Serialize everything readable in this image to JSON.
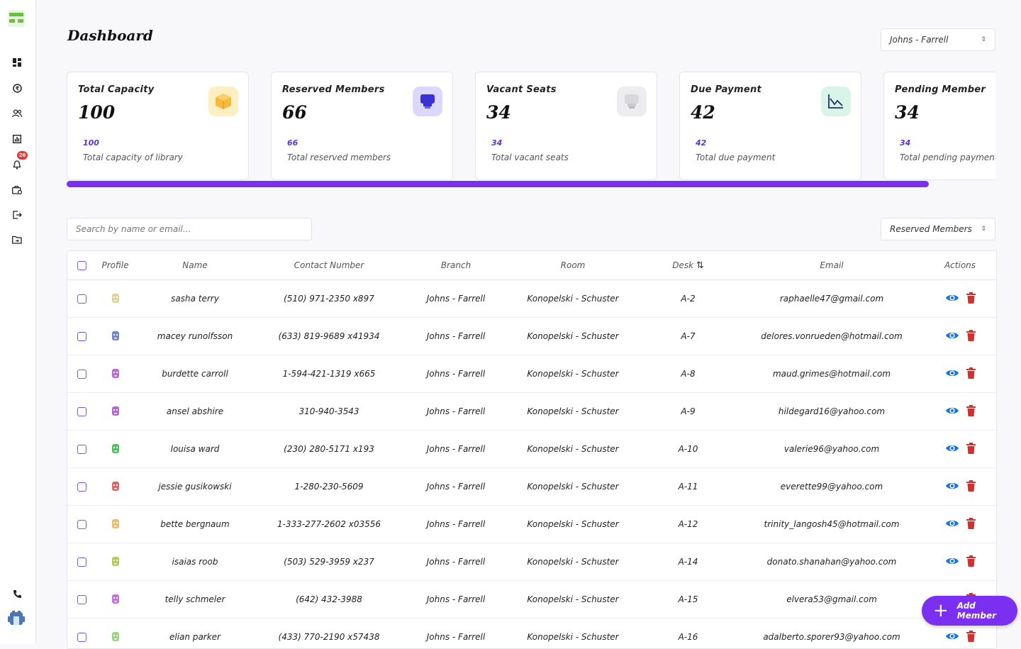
{
  "sidebar": {
    "badge_count": "20"
  },
  "header": {
    "title": "Dashboard",
    "branch_select": "Johns - Farrell"
  },
  "cards": [
    {
      "title": "Total Capacity",
      "value": "100",
      "small": "100",
      "desc": "Total capacity of library"
    },
    {
      "title": "Reserved Members",
      "value": "66",
      "small": "66",
      "desc": "Total reserved members"
    },
    {
      "title": "Vacant Seats",
      "value": "34",
      "small": "34",
      "desc": "Total vacant seats"
    },
    {
      "title": "Due Payment",
      "value": "42",
      "small": "42",
      "desc": "Total due payment"
    },
    {
      "title": "Pending Member",
      "value": "34",
      "small": "34",
      "desc": "Total pending payment"
    }
  ],
  "filters": {
    "search_placeholder": "Search by name or email...",
    "member_filter": "Reserved Members"
  },
  "table": {
    "headers": {
      "profile": "Profile",
      "name": "Name",
      "contact": "Contact Number",
      "branch": "Branch",
      "room": "Room",
      "desk": "Desk",
      "email": "Email",
      "actions": "Actions"
    },
    "rows": [
      {
        "name": "sasha terry",
        "contact": "(510) 971-2350 x897",
        "branch": "Johns - Farrell",
        "room": "Konopelski - Schuster",
        "desk": "A-2",
        "email": "raphaelle47@gmail.com",
        "avatar_color": "#d9c98a"
      },
      {
        "name": "macey runolfsson",
        "contact": "(633) 819-9689 x41934",
        "branch": "Johns - Farrell",
        "room": "Konopelski - Schuster",
        "desk": "A-7",
        "email": "delores.vonrueden@hotmail.com",
        "avatar_color": "#5a6fc9"
      },
      {
        "name": "burdette carroll",
        "contact": "1-594-421-1319 x665",
        "branch": "Johns - Farrell",
        "room": "Konopelski - Schuster",
        "desk": "A-8",
        "email": "maud.grimes@hotmail.com",
        "avatar_color": "#b04fc8"
      },
      {
        "name": "ansel abshire",
        "contact": "310-940-3543",
        "branch": "Johns - Farrell",
        "room": "Konopelski - Schuster",
        "desk": "A-9",
        "email": "hildegard16@yahoo.com",
        "avatar_color": "#a44dc4"
      },
      {
        "name": "louisa ward",
        "contact": "(230) 280-5171 x193",
        "branch": "Johns - Farrell",
        "room": "Konopelski - Schuster",
        "desk": "A-10",
        "email": "valerie96@yahoo.com",
        "avatar_color": "#3cb64a"
      },
      {
        "name": "jessie gusikowski",
        "contact": "1-280-230-5609",
        "branch": "Johns - Farrell",
        "room": "Konopelski - Schuster",
        "desk": "A-11",
        "email": "everette99@yahoo.com",
        "avatar_color": "#d94a4a"
      },
      {
        "name": "bette bergnaum",
        "contact": "1-333-277-2602 x03556",
        "branch": "Johns - Farrell",
        "room": "Konopelski - Schuster",
        "desk": "A-12",
        "email": "trinity_langosh45@hotmail.com",
        "avatar_color": "#e0b45a"
      },
      {
        "name": "isaias roob",
        "contact": "(503) 529-3959 x237",
        "branch": "Johns - Farrell",
        "room": "Konopelski - Schuster",
        "desk": "A-14",
        "email": "donato.shanahan@yahoo.com",
        "avatar_color": "#a6c23a"
      },
      {
        "name": "telly schmeler",
        "contact": "(642) 432-3988",
        "branch": "Johns - Farrell",
        "room": "Konopelski - Schuster",
        "desk": "A-15",
        "email": "elvera53@gmail.com",
        "avatar_color": "#b65ad0"
      },
      {
        "name": "elian parker",
        "contact": "(433) 770-2190 x57438",
        "branch": "Johns - Farrell",
        "room": "Konopelski - Schuster",
        "desk": "A-16",
        "email": "adalberto.sporer93@yahoo.com",
        "avatar_color": "#8ccf6a"
      }
    ]
  },
  "fab": {
    "label": "Add Member"
  },
  "colors": {
    "accent": "#7b2ff0",
    "view_icon": "#1976d2",
    "delete_icon": "#d32f2f",
    "card_small": "#5b34d8"
  },
  "icons": [
    "logo-icon",
    "dashboard-icon",
    "payment-icon",
    "members-icon",
    "reports-icon",
    "notifications-icon",
    "branches-icon",
    "logout-icon",
    "folder-icon",
    "phone-icon",
    "user-avatar-icon",
    "view-icon",
    "delete-icon",
    "sort-icon"
  ]
}
